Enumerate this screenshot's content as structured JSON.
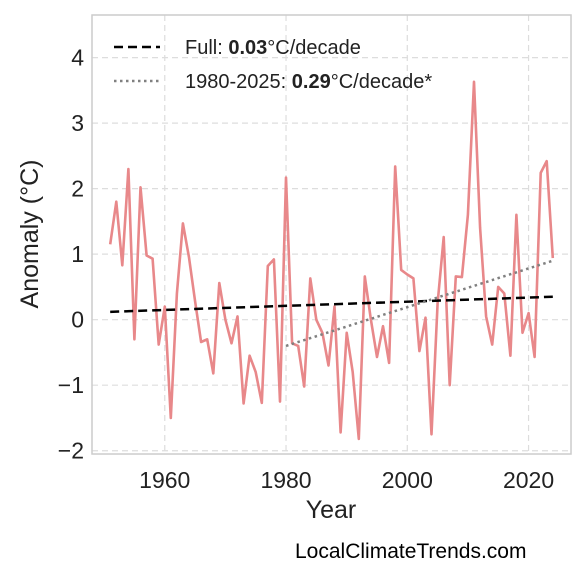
{
  "attribution": "LocalClimateTrends.com",
  "colors": {
    "anomaly": "#e8888a",
    "full_trend": "#000000",
    "recent_trend": "#808080",
    "grid": "#dddddd",
    "frame": "#cccccc"
  },
  "chart_data": {
    "type": "line",
    "title": "",
    "xlabel": "Year",
    "ylabel": "Anomaly (°C)",
    "xlim": [
      1948,
      2027
    ],
    "ylim": [
      -2.05,
      4.65
    ],
    "xticks": [
      1960,
      1980,
      2000,
      2020
    ],
    "yticks": [
      -2,
      -1,
      0,
      1,
      2,
      3,
      4
    ],
    "xtick_labels": [
      "1960",
      "1980",
      "2000",
      "2020"
    ],
    "ytick_labels": [
      "−2",
      "−1",
      "0",
      "1",
      "2",
      "3",
      "4"
    ],
    "grid": true,
    "legend_position": "top-left",
    "legend": [
      {
        "key": "full",
        "style": "dashed",
        "prefix": "Full: ",
        "value": "0.03",
        "suffix": "°C/decade"
      },
      {
        "key": "recent",
        "style": "dotted",
        "prefix": "1980-2025: ",
        "value": "0.29",
        "suffix": "°C/decade*"
      }
    ],
    "anomaly_series": {
      "x": [
        1951,
        1952,
        1953,
        1954,
        1955,
        1956,
        1957,
        1958,
        1959,
        1960,
        1961,
        1962,
        1963,
        1964,
        1965,
        1966,
        1967,
        1968,
        1969,
        1970,
        1971,
        1972,
        1973,
        1974,
        1975,
        1976,
        1977,
        1978,
        1979,
        1980,
        1981,
        1982,
        1983,
        1984,
        1985,
        1986,
        1987,
        1988,
        1989,
        1990,
        1991,
        1992,
        1993,
        1994,
        1995,
        1996,
        1997,
        1998,
        1999,
        2000,
        2001,
        2002,
        2003,
        2004,
        2005,
        2006,
        2007,
        2008,
        2009,
        2010,
        2011,
        2012,
        2013,
        2014,
        2015,
        2016,
        2017,
        2018,
        2019,
        2020,
        2021,
        2022,
        2023,
        2024
      ],
      "y": [
        1.15,
        1.8,
        0.83,
        2.3,
        -0.3,
        2.02,
        0.98,
        0.93,
        -0.38,
        0.2,
        -1.5,
        0.4,
        1.47,
        0.95,
        0.28,
        -0.34,
        -0.3,
        -0.82,
        0.56,
        0.0,
        -0.36,
        0.05,
        -1.28,
        -0.55,
        -0.8,
        -1.27,
        0.82,
        0.92,
        -1.25,
        2.17,
        -0.36,
        -0.4,
        -1.02,
        0.63,
        0.0,
        -0.2,
        -0.7,
        0.2,
        -1.72,
        -0.2,
        -0.8,
        -1.82,
        0.66,
        0.0,
        -0.57,
        -0.1,
        -0.66,
        2.34,
        0.76,
        0.69,
        0.63,
        -0.48,
        0.03,
        -1.75,
        0.25,
        1.26,
        -1.0,
        0.66,
        0.65,
        1.6,
        3.63,
        1.4,
        0.05,
        -0.38,
        0.5,
        0.4,
        -0.55,
        1.6,
        -0.2,
        0.1,
        -0.57,
        2.24,
        2.42,
        0.94
      ]
    },
    "full_trend": {
      "x": [
        1951,
        2024
      ],
      "y": [
        0.12,
        0.35
      ]
    },
    "recent_trend": {
      "x": [
        1980,
        2024
      ],
      "y": [
        -0.4,
        0.9
      ]
    }
  }
}
